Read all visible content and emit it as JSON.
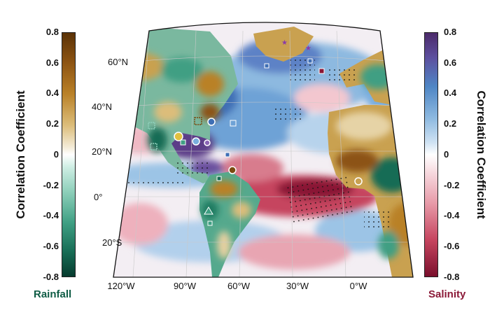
{
  "colorbars": {
    "rainfall": {
      "title": "Correlation Coefficient",
      "label": "Rainfall",
      "range": [
        -0.8,
        0.8
      ],
      "ticks": [
        "0.8",
        "0.6",
        "0.4",
        "0.2",
        "0",
        "-0.2",
        "-0.4",
        "-0.6",
        "-0.8"
      ],
      "colors": {
        "high": "#5a3206",
        "mid": "#ffffff",
        "low": "#063b2e"
      }
    },
    "salinity": {
      "title": "Correlation Coefficient",
      "label": "Salinity",
      "range": [
        -0.8,
        0.8
      ],
      "ticks": [
        "0.8",
        "0.6",
        "0.4",
        "0.2",
        "0",
        "-0.2",
        "-0.4",
        "-0.6",
        "-0.8"
      ],
      "colors": {
        "high": "#4c2a6a",
        "mid": "#ffffff",
        "low": "#7a0f2c"
      }
    }
  },
  "map": {
    "region": "Atlantic basin and surrounding continents",
    "lat_labels": [
      "60°N",
      "40°N",
      "20°N",
      "0°",
      "20°S"
    ],
    "lon_labels": [
      "120°W",
      "90°W",
      "60°W",
      "30°W",
      "0°W"
    ]
  }
}
